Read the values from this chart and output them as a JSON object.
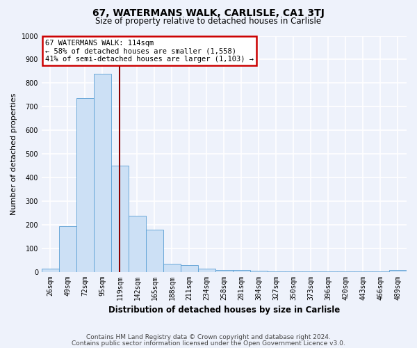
{
  "title": "67, WATERMANS WALK, CARLISLE, CA1 3TJ",
  "subtitle": "Size of property relative to detached houses in Carlisle",
  "xlabel": "Distribution of detached houses by size in Carlisle",
  "ylabel": "Number of detached properties",
  "footnote1": "Contains HM Land Registry data © Crown copyright and database right 2024.",
  "footnote2": "Contains public sector information licensed under the Open Government Licence v3.0.",
  "bin_labels": [
    "26sqm",
    "49sqm",
    "72sqm",
    "95sqm",
    "119sqm",
    "142sqm",
    "165sqm",
    "188sqm",
    "211sqm",
    "234sqm",
    "258sqm",
    "281sqm",
    "304sqm",
    "327sqm",
    "350sqm",
    "373sqm",
    "396sqm",
    "420sqm",
    "443sqm",
    "466sqm",
    "489sqm"
  ],
  "bar_values": [
    15,
    195,
    735,
    840,
    450,
    240,
    180,
    35,
    30,
    15,
    10,
    10,
    5,
    3,
    3,
    3,
    3,
    3,
    3,
    3,
    10
  ],
  "bar_color": "#cce0f5",
  "bar_edge_color": "#5a9fd4",
  "property_line_bin": 4,
  "property_line_color": "#8b0000",
  "annotation_text": "67 WATERMANS WALK: 114sqm\n← 58% of detached houses are smaller (1,558)\n41% of semi-detached houses are larger (1,103) →",
  "annotation_box_color": "#ffffff",
  "annotation_box_edge_color": "#cc0000",
  "ylim": [
    0,
    1000
  ],
  "yticks": [
    0,
    100,
    200,
    300,
    400,
    500,
    600,
    700,
    800,
    900,
    1000
  ],
  "bg_color": "#eef2fb",
  "grid_color": "#ffffff",
  "title_fontsize": 10,
  "subtitle_fontsize": 8.5,
  "axis_label_fontsize": 8,
  "tick_fontsize": 7,
  "footnote_fontsize": 6.5
}
